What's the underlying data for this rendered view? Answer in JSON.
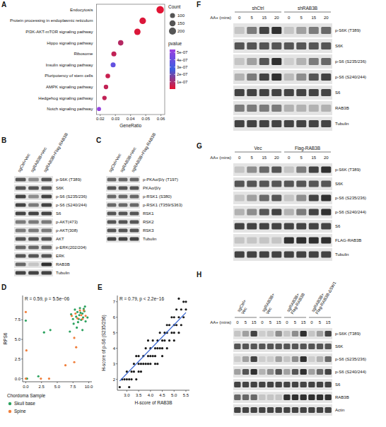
{
  "chart_data": [
    {
      "type": "dot",
      "panel": "A",
      "orientation": "horizontal",
      "grid": false,
      "x_label": "GeneRatio",
      "categories": [
        "Endocytosis",
        "Protein processing in endoplasmic reticulum",
        "PI3K-AKT-mTOR signaling pathway",
        "Hippo signaling pathway",
        "Ribosome",
        "Insulin signaling pathway",
        "Pluripotency of stem cells",
        "AMPK signaling pathway",
        "Hedgehog signaling pathway",
        "Notch signaling pathway"
      ],
      "values": [
        0.0595,
        0.048,
        0.0445,
        0.0335,
        0.029,
        0.0285,
        0.025,
        0.0238,
        0.0228,
        0.0192
      ],
      "sizes": [
        220,
        170,
        160,
        115,
        100,
        100,
        85,
        80,
        78,
        65
      ],
      "pvalues": [
        1e-08,
        2e-08,
        2e-08,
        8e-08,
        6e-08,
        3.8e-07,
        5e-08,
        6e-08,
        6e-08,
        5.2e-07
      ],
      "xlim": [
        0.0175,
        0.0625
      ],
      "xticks": [
        0.02,
        0.03,
        0.04,
        0.05,
        0.06
      ],
      "size_legend": {
        "title": "Count",
        "values": [
          100,
          150,
          200
        ]
      },
      "color_bar": {
        "title": "pvalue",
        "range": [
          0,
          5.4e-07
        ],
        "colors": [
          "#e8112d",
          "#3a5ee0",
          "#9b3fe0"
        ],
        "ticks": [
          {
            "value": 5e-07,
            "label": "5e-07"
          },
          {
            "value": 4e-07,
            "label": "4e-07"
          },
          {
            "value": 3e-07,
            "label": "3e-07"
          },
          {
            "value": 2e-07,
            "label": "2e-07"
          },
          {
            "value": 1e-07,
            "label": "1e-07"
          }
        ]
      }
    },
    {
      "type": "scatter",
      "panel": "D",
      "annotation": "R = 0.59, p = 5.5e−06",
      "y_label": "RPS6",
      "legend": "bottom",
      "legend_title": "Chordoma Sample",
      "xlim": [
        -0.5,
        10.5
      ],
      "ylim": [
        -0.4,
        10.6
      ],
      "xticks": [
        {
          "value": 0,
          "label": "0.0"
        },
        2.5,
        {
          "value": 5,
          "label": "5.0"
        },
        7.5,
        {
          "value": 10,
          "label": "10.0"
        }
      ],
      "yticks": [
        {
          "value": 0,
          "label": "0.0"
        },
        2.5,
        {
          "value": 5,
          "label": "5.0"
        },
        7.5
      ],
      "series": [
        {
          "name": "Skull base",
          "color": "#2ca25f",
          "marker": "circle",
          "x": [
            7.2,
            7.5,
            7.8,
            8.0,
            8.2,
            8.3,
            8.5,
            8.6,
            8.8,
            9.0,
            9.1,
            9.3,
            9.5,
            7.6,
            8.1,
            9.0,
            9.2,
            9.8,
            8.4,
            0.1,
            0.2,
            2.0,
            2.9,
            3.9,
            0.0,
            7.0,
            8.7,
            9.4
          ],
          "values": [
            8.2,
            7.6,
            8.8,
            7.9,
            8.5,
            7.2,
            8.1,
            9.0,
            7.5,
            8.3,
            7.8,
            8.6,
            7.3,
            7.0,
            6.5,
            6.2,
            8.9,
            7.8,
            7.6,
            0.0,
            0.0,
            0.3,
            5.9,
            6.2,
            7.4,
            6.0,
            8.4,
            9.2
          ]
        },
        {
          "name": "Spine",
          "color": "#f07f3c",
          "marker": "circle",
          "x": [
            0.0,
            0.1,
            0.0,
            2.4,
            3.7,
            7.3,
            7.9,
            8.2,
            8.6,
            9.0,
            9.5,
            9.2,
            8.0,
            7.7,
            6.3,
            7.7,
            8.8
          ],
          "values": [
            8.5,
            3.6,
            0.0,
            0.0,
            0.0,
            8.0,
            8.3,
            7.7,
            8.7,
            7.6,
            8.0,
            8.7,
            4.0,
            5.2,
            1.7,
            2.1,
            8.1
          ]
        }
      ]
    },
    {
      "type": "scatter",
      "panel": "E",
      "annotation": "R = 0.79, p < 2.2e−16",
      "x_label": "H-score of RAB3B",
      "y_label": "H-score of p-S6 (S235/236)",
      "xlim": [
        2.6,
        5.65
      ],
      "ylim": [
        1.3,
        7.4
      ],
      "xticks": [
        {
          "value": 3,
          "label": "3.0"
        },
        3.5,
        {
          "value": 4,
          "label": "4.0"
        },
        4.5,
        {
          "value": 5,
          "label": "5.0"
        },
        5.5
      ],
      "yticks": [
        2,
        3,
        4,
        5,
        6,
        7
      ],
      "series": [
        {
          "type": "scatter",
          "color": "#1a1a1a",
          "marker": "circle",
          "x": [
            2.8,
            2.9,
            3.0,
            3.0,
            3.1,
            3.2,
            3.2,
            3.3,
            3.3,
            3.4,
            3.5,
            3.5,
            3.5,
            3.6,
            3.6,
            3.7,
            3.7,
            3.8,
            3.8,
            3.9,
            3.9,
            4.0,
            4.0,
            4.0,
            4.1,
            4.1,
            4.2,
            4.2,
            4.3,
            4.3,
            4.3,
            4.4,
            4.4,
            4.5,
            4.5,
            4.5,
            4.6,
            4.6,
            4.7,
            4.7,
            4.7,
            4.8,
            4.8,
            4.9,
            4.9,
            5.0,
            5.0,
            5.0,
            5.0,
            5.1,
            5.1,
            5.2,
            5.2,
            5.3,
            5.3,
            5.4,
            5.4,
            5.5,
            5.5,
            5.2,
            3.4,
            3.9,
            4.2,
            2.7,
            3.1
          ],
          "values": [
            2.0,
            2.0,
            2.0,
            2.5,
            2.0,
            2.0,
            2.5,
            3.0,
            2.5,
            2.0,
            2.5,
            3.0,
            3.5,
            3.0,
            2.5,
            3.0,
            3.5,
            3.0,
            4.0,
            3.5,
            3.0,
            3.0,
            3.5,
            4.0,
            3.5,
            4.5,
            3.5,
            4.0,
            4.0,
            4.5,
            3.0,
            4.0,
            5.0,
            4.5,
            4.0,
            3.5,
            4.5,
            5.0,
            4.0,
            5.0,
            5.5,
            4.5,
            5.5,
            5.0,
            6.0,
            5.0,
            5.5,
            6.0,
            4.5,
            5.5,
            6.5,
            6.0,
            5.0,
            6.5,
            5.5,
            6.0,
            7.0,
            6.5,
            7.0,
            7.2,
            3.5,
            4.5,
            3.0,
            1.5,
            1.5
          ]
        },
        {
          "type": "line",
          "color": "#2f5fd0",
          "line_style": "solid",
          "x": [
            2.7,
            5.5
          ],
          "values": [
            1.9,
            6.3
          ]
        }
      ]
    }
  ],
  "blots": [
    {
      "panel": "B",
      "lanes": [
        "sgCtrl+Vec",
        "sgRAB3B+Vec",
        "sgRAB3B+Flag-RAB3B"
      ],
      "rows": [
        {
          "label": "p-S6K (T389)",
          "bands": [
            0.7,
            0.4,
            0.7
          ]
        },
        {
          "label": "S6K",
          "bands": 0.7
        },
        {
          "label": "p-S6 (S235/236)",
          "bands": [
            0.8,
            0.4,
            0.8
          ]
        },
        {
          "label": "p-S6 (S240/244)",
          "bands": [
            0.8,
            0.5,
            0.8
          ]
        },
        {
          "label": "S6",
          "bands": 0.8
        },
        {
          "label": "p-AKT(473)",
          "bands": 0.5
        },
        {
          "label": "p-AKT(308)",
          "bands": 0.5
        },
        {
          "label": "AKT",
          "bands": 0.7
        },
        {
          "label": "p-ERK(202/204)",
          "bands": 0.6
        },
        {
          "label": "ERK",
          "bands": 0.7
        },
        {
          "label": "RAB3B",
          "bands": [
            0.6,
            0.1,
            0.9
          ]
        },
        {
          "label": "Tubulin",
          "bands": 0.8
        }
      ]
    },
    {
      "panel": "C",
      "lanes": [
        "sgCtrl+Vec",
        "sgRAB3B+Vec",
        "sgRAB3B+Flag-RAB3B"
      ],
      "rows": [
        {
          "label": "p-PKAα/β/γ (T197)",
          "bands": 0.6
        },
        {
          "label": "PKAα/β/γ",
          "bands": 0.7
        },
        {
          "label": "p-RSK1 (S380)",
          "bands": 0.6
        },
        {
          "label": "p-RSK1 (T359/S363)",
          "bands": 0.6
        },
        {
          "label": "RSK1",
          "bands": 0.7
        },
        {
          "label": "RSK2",
          "bands": 0.7
        },
        {
          "label": "RSK3",
          "bands": 0.7
        },
        {
          "label": "Tubulin",
          "bands": 0.8
        }
      ]
    },
    {
      "panel": "F",
      "time_label": "AA+ (mins)",
      "groups": [
        {
          "name": "shCtrl",
          "times": [
            0,
            5,
            15,
            20
          ]
        },
        {
          "name": "shRAB3B",
          "times": [
            0,
            5,
            15,
            20
          ]
        }
      ],
      "rows": [
        {
          "label": "p-S6K (T389)",
          "bands": [
            0.1,
            0.5,
            0.8,
            0.9,
            0.1,
            0.3,
            0.5,
            0.6
          ]
        },
        {
          "label": "S6K",
          "bands": 0.7
        },
        {
          "label": "p-S6 (S235/236)",
          "bands": [
            0.1,
            0.3,
            0.7,
            0.9,
            0.05,
            0.2,
            0.5,
            0.6
          ]
        },
        {
          "label": "p-S6 (S240/244)",
          "bands": [
            0.2,
            0.5,
            0.8,
            0.9,
            0.15,
            0.4,
            0.7,
            0.8
          ]
        },
        {
          "label": "S6",
          "bands": 0.8
        },
        {
          "label": "RAB3B",
          "bands": [
            0.5,
            0.5,
            0.5,
            0.5,
            0.2,
            0.2,
            0.2,
            0.2
          ]
        },
        {
          "label": "Tubulin",
          "bands": 0.8
        }
      ]
    },
    {
      "panel": "G",
      "time_label": "AA+ (mins)",
      "groups": [
        {
          "name": "Vec",
          "times": [
            0,
            5,
            15,
            20
          ]
        },
        {
          "name": "Flag-RAB3B",
          "times": [
            0,
            5,
            15,
            20
          ]
        }
      ],
      "rows": [
        {
          "label": "p-S6K (T389)",
          "bands": [
            0.1,
            0.4,
            0.6,
            0.7,
            0.1,
            0.5,
            0.8,
            0.9
          ]
        },
        {
          "label": "S6K",
          "bands": 0.7
        },
        {
          "label": "p-S6 (S235/236)",
          "bands": [
            0.1,
            0.3,
            0.6,
            0.7,
            0.1,
            0.4,
            0.8,
            0.9
          ]
        },
        {
          "label": "p-S6 (S240/244)",
          "bands": [
            0.2,
            0.4,
            0.7,
            0.8,
            0.2,
            0.5,
            0.8,
            0.9
          ]
        },
        {
          "label": "S6",
          "bands": 0.8
        },
        {
          "label": "FLAG-RAB3B",
          "bands": [
            0.1,
            0.1,
            0.1,
            0.1,
            0.9,
            0.9,
            0.9,
            0.9
          ]
        },
        {
          "label": "Tubulin",
          "bands": 0.8
        }
      ]
    },
    {
      "panel": "H",
      "time_label": "AA+ (mins)",
      "groups": [
        {
          "name": "sgCtrl+ Vec",
          "times": [
            0,
            5,
            15
          ]
        },
        {
          "name": "sgRAB3B+ Vec",
          "times": [
            0,
            5,
            15
          ]
        },
        {
          "name": "sgRAB3B+ Flag-RAB3B",
          "times": [
            0,
            5,
            15
          ]
        },
        {
          "name": "sgRAB3B+ Flag-RAB3B-ΔSW1",
          "times": [
            0,
            5,
            15
          ]
        }
      ],
      "rows": [
        {
          "label": "p-S6K (T389)",
          "bands": [
            0.1,
            0.3,
            0.8,
            0.05,
            0.1,
            0.4,
            0.1,
            0.4,
            0.9,
            0.1,
            0.3,
            0.8
          ]
        },
        {
          "label": "S6K",
          "bands": 0.7
        },
        {
          "label": "p-S6 (S235/236)",
          "bands": [
            0.05,
            0.3,
            0.8,
            0.05,
            0.05,
            0.3,
            0.1,
            0.4,
            0.9,
            0.05,
            0.2,
            0.6
          ]
        },
        {
          "label": "p-S6 (S240/244)",
          "bands": [
            0.3,
            0.7,
            0.9,
            0.2,
            0.4,
            0.7,
            0.3,
            0.7,
            0.9,
            0.3,
            0.6,
            0.8
          ]
        },
        {
          "label": "S6",
          "bands": 0.8
        },
        {
          "label": "RAB3B",
          "bands": [
            0.6,
            0.6,
            0.6,
            0.1,
            0.1,
            0.1,
            0.9,
            0.9,
            0.9,
            0.9,
            0.9,
            0.9
          ]
        },
        {
          "label": "Actin",
          "bands": 0.8
        }
      ]
    }
  ]
}
